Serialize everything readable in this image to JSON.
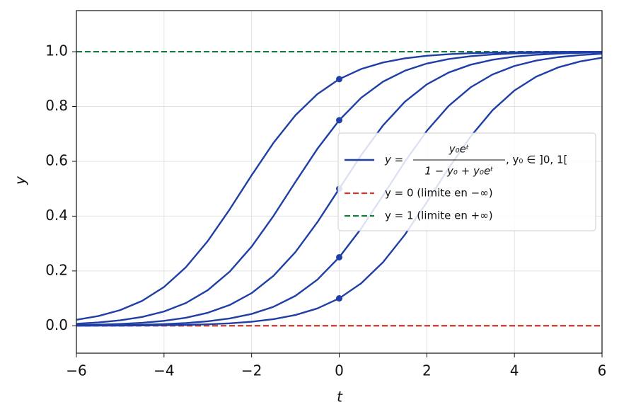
{
  "chart_data": {
    "type": "line",
    "x_label": "t",
    "y_label": "y",
    "xlim": [
      -6,
      6
    ],
    "ylim": [
      -0.1,
      1.15
    ],
    "xticks": [
      {
        "value": -6,
        "label": "−6"
      },
      {
        "value": -4,
        "label": "−4"
      },
      {
        "value": -2,
        "label": "−2"
      },
      0,
      2,
      4,
      6
    ],
    "yticks": [
      {
        "value": 0,
        "label": "0.0"
      },
      {
        "value": 0.2,
        "label": "0.2"
      },
      {
        "value": 0.4,
        "label": "0.4"
      },
      {
        "value": 0.6,
        "label": "0.6"
      },
      {
        "value": 0.8,
        "label": "0.8"
      },
      {
        "value": 1,
        "label": "1.0"
      }
    ],
    "grid": true,
    "x": [
      -6,
      -5.5,
      -5,
      -4.5,
      -4,
      -3.5,
      -3,
      -2.5,
      -2,
      -1.5,
      -1,
      -0.5,
      0,
      0.5,
      1,
      1.5,
      2,
      2.5,
      3,
      3.5,
      4,
      4.5,
      5,
      5.5,
      6
    ],
    "series": [
      {
        "color": "#1f3fa6",
        "values": [
          0.000275,
          0.000454,
          0.000748,
          0.001233,
          0.002031,
          0.003344,
          0.005501,
          0.009038,
          0.014815,
          0.02419,
          0.03927,
          0.06314,
          0.1,
          0.15483,
          0.23197,
          0.33243,
          0.45084,
          0.57512,
          0.69057,
          0.78631,
          0.8585,
          0.90911,
          0.94283,
          0.96452,
          0.97818
        ]
      },
      {
        "color": "#1f3fa6",
        "values": [
          0.000826,
          0.001361,
          0.002241,
          0.00369,
          0.006068,
          0.009966,
          0.016324,
          0.026634,
          0.043165,
          0.069228,
          0.10923,
          0.16818,
          0.25,
          0.35466,
          0.47537,
          0.59902,
          0.71123,
          0.8024,
          0.87004,
          0.91693,
          0.94791,
          0.96775,
          0.98019,
          0.98789,
          0.99262
        ]
      },
      {
        "color": "#1f3fa6",
        "values": [
          0.002473,
          0.00407,
          0.006693,
          0.010987,
          0.017986,
          0.029312,
          0.047426,
          0.075858,
          0.1192,
          0.18243,
          0.26894,
          0.37754,
          0.5,
          0.62246,
          0.73106,
          0.81757,
          0.8808,
          0.92414,
          0.95257,
          0.97069,
          0.98201,
          0.98901,
          0.99331,
          0.99593,
          0.99753
        ]
      },
      {
        "color": "#1f3fa6",
        "values": [
          0.00738,
          0.01211,
          0.01981,
          0.03225,
          0.05209,
          0.08307,
          0.12996,
          0.1976,
          0.28877,
          0.40098,
          0.52463,
          0.64534,
          0.75,
          0.83182,
          0.89077,
          0.93077,
          0.95684,
          0.97337,
          0.98368,
          0.99003,
          0.99393,
          0.99631,
          0.99776,
          0.99864,
          0.99917
        ]
      },
      {
        "color": "#1f3fa6",
        "values": [
          0.02182,
          0.03548,
          0.05717,
          0.09089,
          0.1415,
          0.21369,
          0.30943,
          0.42488,
          0.54916,
          0.66757,
          0.76803,
          0.84517,
          0.9,
          0.93686,
          0.96073,
          0.97581,
          0.98519,
          0.99096,
          0.9945,
          0.99666,
          0.99797,
          0.99877,
          0.99925,
          0.99955,
          0.99972
        ]
      }
    ],
    "points": {
      "color": "#1f3fa6",
      "x": [
        0,
        0,
        0,
        0,
        0
      ],
      "y": [
        0.1,
        0.25,
        0.5,
        0.75,
        0.9
      ]
    },
    "hlines": [
      {
        "y": 0,
        "color": "#c8372d",
        "label": "y = 0 (limite en −∞)"
      },
      {
        "y": 1,
        "color": "#177a3c",
        "label": "y = 1 (limite en +∞)"
      }
    ],
    "curve_legend": {
      "color": "#1f3fa6",
      "lhs": "y =",
      "numerator": "y₀eᵗ",
      "denominator": "1 − y₀ + y₀eᵗ",
      "rhs": ", y₀ ∈ ]0, 1["
    },
    "legend_position": "center right"
  }
}
